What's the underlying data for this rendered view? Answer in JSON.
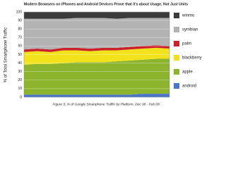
{
  "chart_data": {
    "type": "stacked_area",
    "title": "Modern Browsers on iPhones and Android Devices Prove that it's about Usage, Not Just Units",
    "y_label": "% of Total Smartphone Traffic",
    "caption": "Figure 3: % of Google Smartphone Traffic by Platform, Dec 08 - Feb 09",
    "categories": [
      null,
      null,
      null,
      null,
      null,
      null,
      null,
      null,
      null,
      null,
      null,
      null
    ],
    "series": [
      {
        "name": "android",
        "color": "#4a74c9",
        "values": [
          3,
          3,
          3,
          3,
          3,
          3,
          3,
          3,
          3,
          4,
          4,
          4
        ]
      },
      {
        "name": "apple",
        "color": "#8cb42c",
        "values": [
          35,
          36,
          36,
          37,
          38,
          38,
          38,
          39,
          40,
          40,
          41,
          41
        ]
      },
      {
        "name": "blackberry",
        "color": "#f1e21c",
        "values": [
          15,
          15,
          14,
          15,
          14,
          13,
          14,
          13,
          13,
          13,
          13,
          12
        ]
      },
      {
        "name": "palm",
        "color": "#c9222b",
        "values": [
          3,
          3,
          3,
          3,
          3,
          3,
          3,
          3,
          3,
          3,
          3,
          3
        ]
      },
      {
        "name": "symbian",
        "color": "#b3b3b3",
        "values": [
          36,
          35,
          36,
          34,
          35,
          36,
          35,
          34,
          34,
          33,
          32,
          33
        ]
      },
      {
        "name": "winmo",
        "color": "#3b3b3b",
        "values": [
          8,
          8,
          8,
          8,
          7,
          7,
          7,
          8,
          7,
          7,
          7,
          7
        ]
      }
    ],
    "ylim": [
      0,
      100
    ],
    "yticks": [
      0,
      10,
      20,
      30,
      40,
      50,
      60,
      70,
      80,
      90,
      100
    ],
    "grid": true
  }
}
